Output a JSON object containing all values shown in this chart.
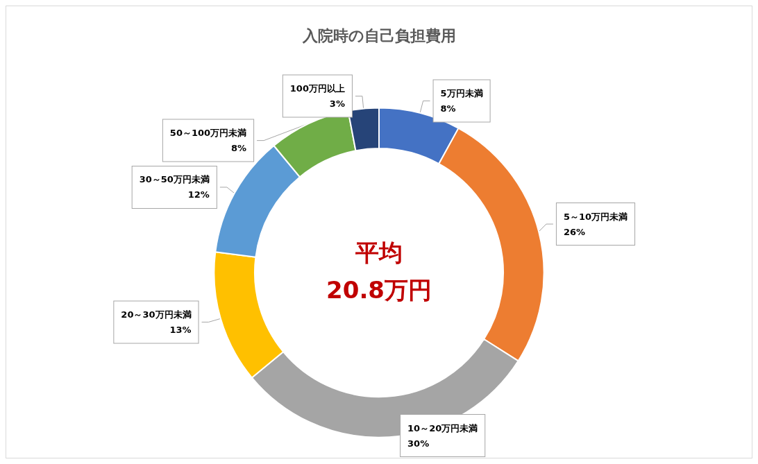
{
  "chart_data": {
    "type": "donut",
    "title": "入院時の自己負担費用",
    "categories": [
      "5万円未満",
      "5～10万円未満",
      "10～20万円未満",
      "20～30万円未満",
      "30～50万円未満",
      "50～100万円未満",
      "100万円以上"
    ],
    "values": [
      8,
      26,
      30,
      13,
      12,
      8,
      3
    ],
    "colors": [
      "#4472c4",
      "#ed7d31",
      "#a5a5a5",
      "#ffc000",
      "#5b9bd5",
      "#70ad47",
      "#264478"
    ],
    "value_labels": [
      "8%",
      "26%",
      "30%",
      "13%",
      "12%",
      "8%",
      "3%"
    ],
    "annotations": [
      "平均",
      "20.8万円"
    ],
    "legend": false
  }
}
